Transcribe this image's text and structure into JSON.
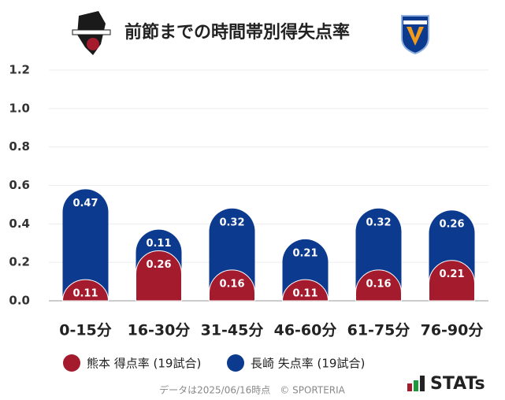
{
  "chart_data": {
    "type": "stacked_bar",
    "title": "前節までの時間帯別得失点率",
    "categories": [
      "0-15分",
      "16-30分",
      "31-45分",
      "46-60分",
      "61-75分",
      "76-90分"
    ],
    "series": [
      {
        "name": "熊本 得点率 (19試合)",
        "color": "#a51b2e",
        "values": [
          0.11,
          0.26,
          0.16,
          0.11,
          0.16,
          0.21
        ]
      },
      {
        "name": "長崎 失点率 (19試合)",
        "color": "#0b3a8f",
        "values": [
          0.47,
          0.11,
          0.32,
          0.21,
          0.32,
          0.26
        ]
      }
    ],
    "ylim": [
      0,
      1.2
    ],
    "yticks": [
      {
        "value": 0,
        "label": "0.0"
      },
      0.2,
      0.4,
      0.6,
      0.8,
      {
        "value": 1,
        "label": "1.0"
      },
      1.2
    ],
    "grid": true,
    "footer": "データは2025/06/16時点　© SPORTERIA",
    "brand": "STATs"
  }
}
